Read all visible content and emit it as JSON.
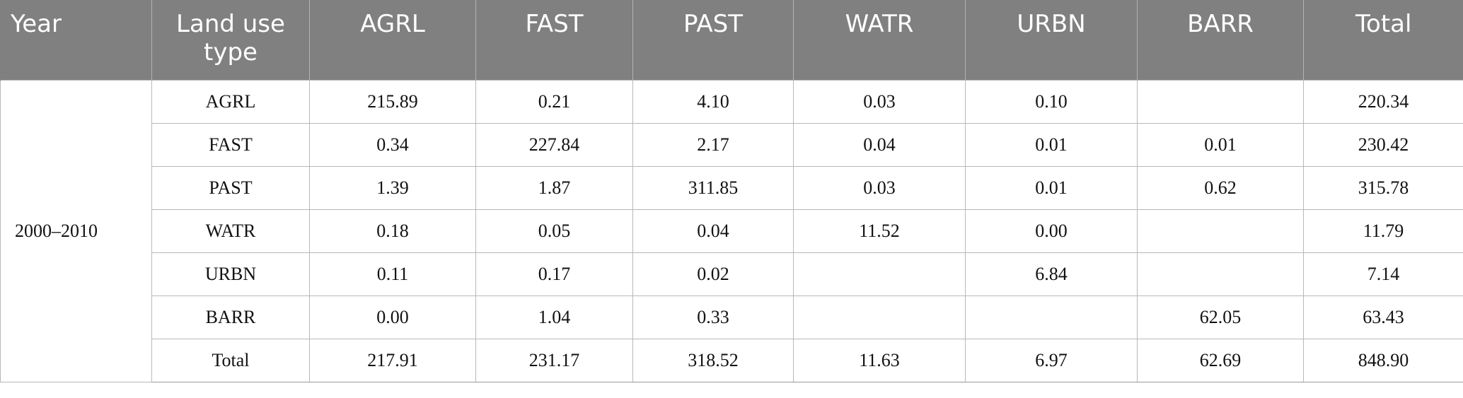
{
  "header": {
    "year": "Year",
    "land_use_type": "Land use type",
    "cols": [
      "AGRL",
      "FAST",
      "PAST",
      "WATR",
      "URBN",
      "BARR",
      "Total"
    ]
  },
  "period": "2000–2010",
  "rows": [
    {
      "type": "AGRL",
      "values": [
        "215.89",
        "0.21",
        "4.10",
        "0.03",
        "0.10",
        "",
        "220.34"
      ]
    },
    {
      "type": "FAST",
      "values": [
        "0.34",
        "227.84",
        "2.17",
        "0.04",
        "0.01",
        "0.01",
        "230.42"
      ]
    },
    {
      "type": "PAST",
      "values": [
        "1.39",
        "1.87",
        "311.85",
        "0.03",
        "0.01",
        "0.62",
        "315.78"
      ]
    },
    {
      "type": "WATR",
      "values": [
        "0.18",
        "0.05",
        "0.04",
        "11.52",
        "0.00",
        "",
        "11.79"
      ]
    },
    {
      "type": "URBN",
      "values": [
        "0.11",
        "0.17",
        "0.02",
        "",
        "6.84",
        "",
        "7.14"
      ]
    },
    {
      "type": "BARR",
      "values": [
        "0.00",
        "1.04",
        "0.33",
        "",
        "",
        "62.05",
        "63.43"
      ]
    },
    {
      "type": "Total",
      "values": [
        "217.91",
        "231.17",
        "318.52",
        "11.63",
        "6.97",
        "62.69",
        "848.90"
      ]
    }
  ]
}
